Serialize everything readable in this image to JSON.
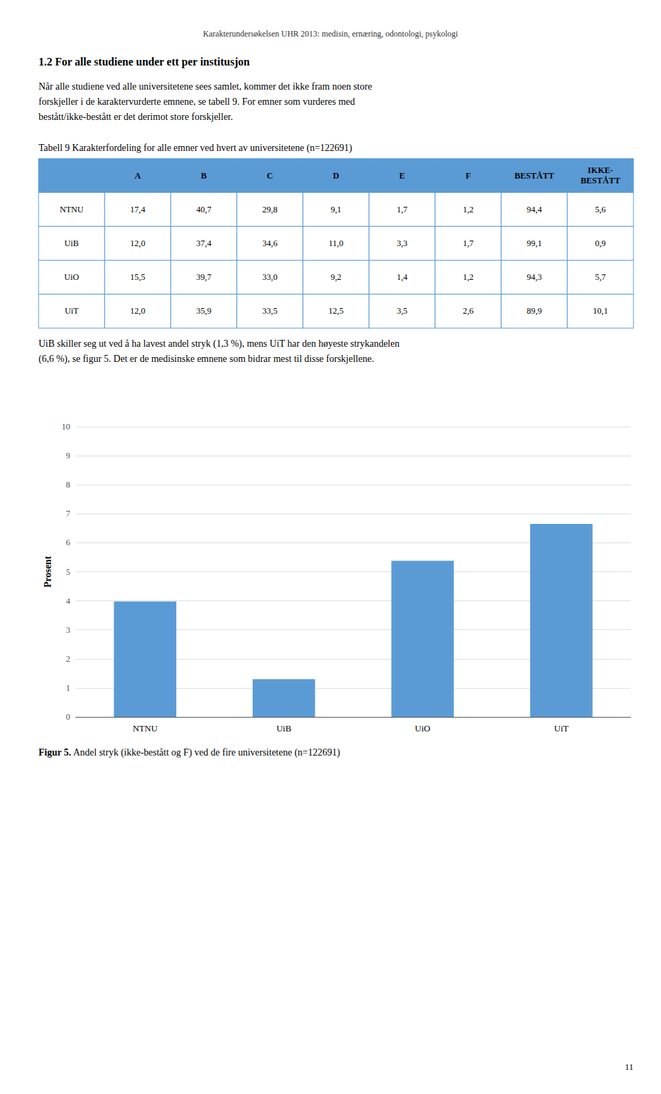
{
  "chart_data": [
    {
      "type": "table",
      "title": "Tabell 9 Karakterfordeling for alle emner ved hvert av universitetene (n=122691)",
      "annotations": [
        "Karakterundersøkelsen UHR 2013: medisin, ernæring, odontologi, psykologi",
        "1.2 For alle studiene under ett per institusjon",
        "Når alle studiene ved alle universitetene sees samlet, kommer det ikke fram noen store\nforskjeller i de karaktervurderte emnene, se tabell 9. For emner som vurderes med\nbestått/ikke-bestått er det derimot store forskjeller."
      ],
      "categories": [
        "NTNU",
        "UiB",
        "UiO",
        "UiT"
      ],
      "series": [
        {
          "name": "A",
          "values": [
            17.4,
            12.0,
            15.5,
            12.0
          ],
          "value_labels": [
            "17,4",
            "12,0",
            "15,5",
            "12,0"
          ]
        },
        {
          "name": "B",
          "values": [
            40.7,
            37.4,
            39.7,
            35.9
          ],
          "value_labels": [
            "40,7",
            "37,4",
            "39,7",
            "35,9"
          ]
        },
        {
          "name": "C",
          "values": [
            29.8,
            34.6,
            33.0,
            33.5
          ],
          "value_labels": [
            "29,8",
            "34,6",
            "33,0",
            "33,5"
          ]
        },
        {
          "name": "D",
          "values": [
            9.1,
            11.0,
            9.2,
            12.5
          ],
          "value_labels": [
            "9,1",
            "11,0",
            "9,2",
            "12,5"
          ]
        },
        {
          "name": "E",
          "values": [
            1.7,
            3.3,
            1.4,
            3.5
          ],
          "value_labels": [
            "1,7",
            "3,3",
            "1,4",
            "3,5"
          ]
        },
        {
          "name": "F",
          "values": [
            1.2,
            1.7,
            1.2,
            2.6
          ],
          "value_labels": [
            "1,2",
            "1,7",
            "1,2",
            "2,6"
          ]
        },
        {
          "name": "BESTÅTT",
          "values": [
            94.4,
            99.1,
            94.3,
            89.9
          ],
          "value_labels": [
            "94,4",
            "99,1",
            "94,3",
            "89,9"
          ]
        },
        {
          "name": "IKKE-\nBESTÅTT",
          "values": [
            5.6,
            0.9,
            5.7,
            10.1
          ],
          "value_labels": [
            "5,6",
            "0,9",
            "5,7",
            "10,1"
          ]
        }
      ],
      "color": "#5B9BD5"
    },
    {
      "type": "bar",
      "annotations": [
        "UiB skiller seg ut ved å ha lavest andel stryk (1,3 %), mens UiT har den høyeste strykandelen\n(6,6 %), se figur 5. Det er de medisinske emnene som bidrar mest til disse forskjellene.",
        "Figur 5.",
        " Andel stryk (ikke-bestått og F) ved de fire universitetene (n=122691)",
        "11"
      ],
      "categories": [
        "NTNU",
        "UiB",
        "UiO",
        "UiT"
      ],
      "values": [
        3.98,
        1.3,
        5.38,
        6.65
      ],
      "color": "#5B9BD5",
      "ylabel": "Prosent",
      "ylim": [
        0,
        10
      ],
      "yticks": [
        0,
        1,
        2,
        3,
        4,
        5,
        6,
        7,
        8,
        9,
        10
      ],
      "grid": true
    }
  ]
}
